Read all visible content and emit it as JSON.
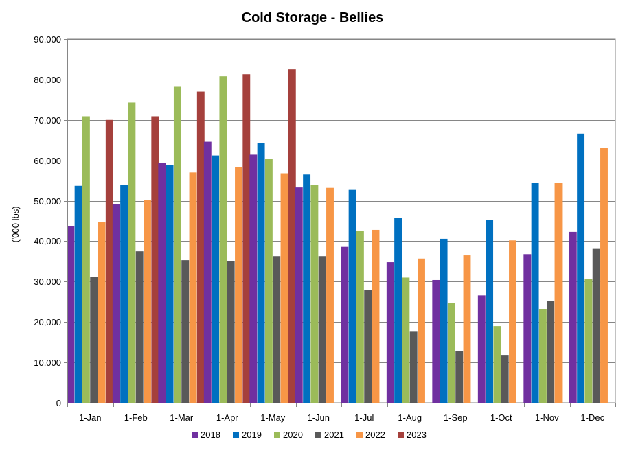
{
  "chart_data": {
    "type": "bar",
    "title": "Cold Storage - Bellies",
    "xlabel": "",
    "ylabel": "('000 lbs)",
    "ylim": [
      0,
      90000
    ],
    "yticks": [
      0,
      10000,
      20000,
      30000,
      40000,
      50000,
      60000,
      70000,
      80000,
      90000
    ],
    "ytick_labels": [
      "0",
      "10,000",
      "20,000",
      "30,000",
      "40,000",
      "50,000",
      "60,000",
      "70,000",
      "80,000",
      "90,000"
    ],
    "grid": true,
    "legend_position": "bottom",
    "categories": [
      "1-Jan",
      "1-Feb",
      "1-Mar",
      "1-Apr",
      "1-May",
      "1-Jun",
      "1-Jul",
      "1-Aug",
      "1-Sep",
      "1-Oct",
      "1-Nov",
      "1-Dec"
    ],
    "series": [
      {
        "name": "2018",
        "color": "#7030A0",
        "values": [
          43800,
          49100,
          59300,
          64600,
          61400,
          53300,
          38600,
          34800,
          30400,
          26600,
          36800,
          42300
        ]
      },
      {
        "name": "2019",
        "color": "#0070C0",
        "values": [
          53700,
          53900,
          58800,
          61200,
          64300,
          56500,
          52700,
          45700,
          40600,
          45300,
          54400,
          66600
        ]
      },
      {
        "name": "2020",
        "color": "#9BBB59",
        "values": [
          70900,
          74300,
          78200,
          80800,
          60300,
          53900,
          42500,
          31000,
          24700,
          19000,
          23200,
          30700
        ]
      },
      {
        "name": "2021",
        "color": "#595959",
        "values": [
          31200,
          37500,
          35300,
          35100,
          36300,
          36300,
          27900,
          17600,
          12900,
          11700,
          25300,
          38100
        ]
      },
      {
        "name": "2022",
        "color": "#F79646",
        "values": [
          44700,
          50100,
          57000,
          58300,
          56800,
          53200,
          42800,
          35700,
          36500,
          40200,
          54400,
          63100
        ]
      },
      {
        "name": "2023",
        "color": "#A5403C",
        "values": [
          70000,
          70900,
          77000,
          81300,
          82500,
          null,
          null,
          null,
          null,
          null,
          null,
          null
        ]
      }
    ]
  }
}
